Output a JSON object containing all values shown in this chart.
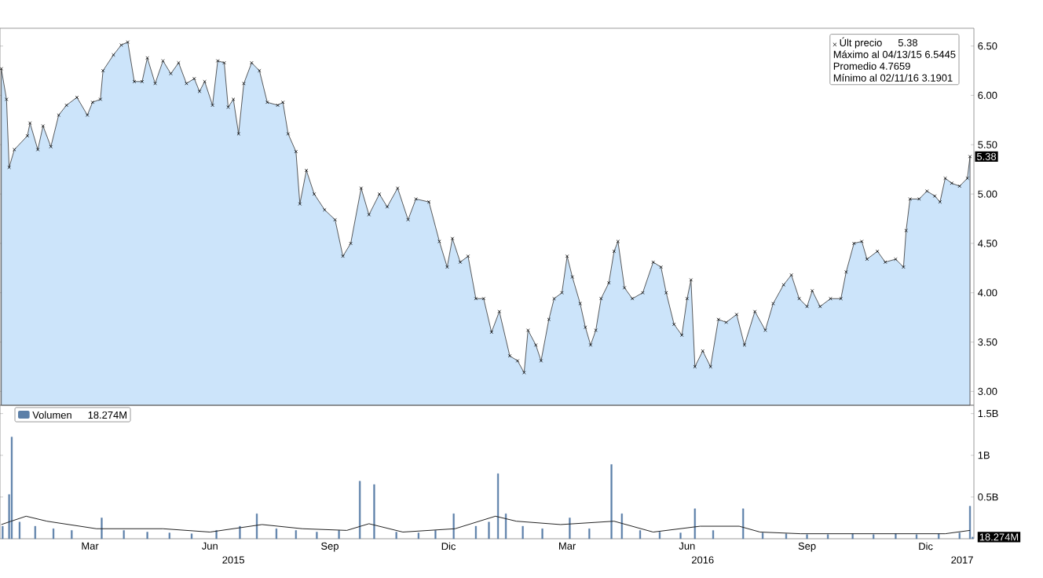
{
  "chart_data": [
    {
      "type": "area",
      "tick_labels": "y",
      "marker": "cross",
      "legend": "top right",
      "xlim": [
        "2015-01-05",
        "2017-01-21"
      ],
      "ylim": [
        2.86,
        6.68
      ],
      "yticks": [
        {
          "value": 3,
          "label": "3.00"
        },
        {
          "value": 3.5,
          "label": "3.50"
        },
        {
          "value": 4,
          "label": "4.00"
        },
        {
          "value": 4.5,
          "label": "4.50"
        },
        {
          "value": 5,
          "label": "5.00"
        },
        {
          "value": 5.5,
          "label": "5.50"
        },
        {
          "value": 6,
          "label": "6.00"
        },
        {
          "value": 6.5,
          "label": "6.50"
        }
      ],
      "series": [
        {
          "name": "Últ precio",
          "color": "#cce4fa",
          "x": [
            "2015-01-06",
            "2015-01-10",
            "2015-01-12",
            "2015-01-16",
            "2015-01-26",
            "2015-01-28",
            "2015-02-03",
            "2015-02-07",
            "2015-02-13",
            "2015-02-19",
            "2015-02-25",
            "2015-03-05",
            "2015-03-13",
            "2015-03-17",
            "2015-03-23",
            "2015-03-25",
            "2015-04-02",
            "2015-04-08",
            "2015-04-13",
            "2015-04-18",
            "2015-04-24",
            "2015-04-28",
            "2015-05-04",
            "2015-05-10",
            "2015-05-16",
            "2015-05-22",
            "2015-05-28",
            "2015-06-03",
            "2015-06-07",
            "2015-06-11",
            "2015-06-17",
            "2015-06-21",
            "2015-06-26",
            "2015-06-29",
            "2015-07-03",
            "2015-07-07",
            "2015-07-11",
            "2015-07-17",
            "2015-07-23",
            "2015-07-29",
            "2015-08-06",
            "2015-08-10",
            "2015-08-14",
            "2015-08-20",
            "2015-08-23",
            "2015-08-28",
            "2015-09-03",
            "2015-09-11",
            "2015-09-19",
            "2015-09-25",
            "2015-10-01",
            "2015-10-09",
            "2015-10-15",
            "2015-10-23",
            "2015-10-29",
            "2015-11-06",
            "2015-11-14",
            "2015-11-20",
            "2015-11-30",
            "2015-12-08",
            "2015-12-14",
            "2015-12-18",
            "2015-12-24",
            "2015-12-30",
            "2016-01-05",
            "2016-01-11",
            "2016-01-17",
            "2016-01-23",
            "2016-01-31",
            "2016-02-06",
            "2016-02-11",
            "2016-02-14",
            "2016-02-20",
            "2016-02-24",
            "2016-03-01",
            "2016-03-05",
            "2016-03-11",
            "2016-03-15",
            "2016-03-19",
            "2016-03-25",
            "2016-03-29",
            "2016-04-02",
            "2016-04-06",
            "2016-04-10",
            "2016-04-16",
            "2016-04-20",
            "2016-04-23",
            "2016-04-28",
            "2016-05-04",
            "2016-05-12",
            "2016-05-20",
            "2016-05-26",
            "2016-05-30",
            "2016-06-05",
            "2016-06-11",
            "2016-06-15",
            "2016-06-18",
            "2016-06-21",
            "2016-06-27",
            "2016-07-03",
            "2016-07-09",
            "2016-07-15",
            "2016-07-23",
            "2016-07-29",
            "2016-08-06",
            "2016-08-14",
            "2016-08-20",
            "2016-08-28",
            "2016-09-03",
            "2016-09-09",
            "2016-09-15",
            "2016-09-19",
            "2016-09-25",
            "2016-10-03",
            "2016-10-11",
            "2016-10-15",
            "2016-10-21",
            "2016-10-27",
            "2016-10-31",
            "2016-11-08",
            "2016-11-14",
            "2016-11-22",
            "2016-11-28",
            "2016-11-30",
            "2016-12-03",
            "2016-12-10",
            "2016-12-16",
            "2016-12-22",
            "2016-12-26",
            "2016-12-30",
            "2017-01-04",
            "2017-01-10",
            "2017-01-16",
            "2017-01-18"
          ],
          "values": [
            6.27,
            5.96,
            5.27,
            5.45,
            5.59,
            5.72,
            5.45,
            5.69,
            5.48,
            5.8,
            5.9,
            5.98,
            5.8,
            5.93,
            5.96,
            6.25,
            6.41,
            6.51,
            6.54,
            6.14,
            6.14,
            6.38,
            6.12,
            6.35,
            6.22,
            6.33,
            6.12,
            6.17,
            6.04,
            6.14,
            5.9,
            6.35,
            6.33,
            5.88,
            5.96,
            5.61,
            6.12,
            6.33,
            6.25,
            5.93,
            5.9,
            5.93,
            5.61,
            5.43,
            4.9,
            5.24,
            5.0,
            4.84,
            4.74,
            4.37,
            4.5,
            5.06,
            4.79,
            5.0,
            4.87,
            5.06,
            4.74,
            4.95,
            4.92,
            4.52,
            4.26,
            4.55,
            4.31,
            4.37,
            3.94,
            3.94,
            3.6,
            3.81,
            3.36,
            3.31,
            3.19,
            3.62,
            3.47,
            3.31,
            3.73,
            3.94,
            4.0,
            4.37,
            4.16,
            3.89,
            3.65,
            3.47,
            3.62,
            3.94,
            4.1,
            4.42,
            4.52,
            4.05,
            3.94,
            4.0,
            4.31,
            4.26,
            4.0,
            3.68,
            3.57,
            3.94,
            4.13,
            3.25,
            3.41,
            3.25,
            3.73,
            3.7,
            3.78,
            3.47,
            3.81,
            3.62,
            3.89,
            4.08,
            4.18,
            3.94,
            3.86,
            4.02,
            3.86,
            3.94,
            3.94,
            4.21,
            4.5,
            4.52,
            4.34,
            4.42,
            4.31,
            4.34,
            4.26,
            4.63,
            4.95,
            4.95,
            5.03,
            4.98,
            4.92,
            5.16,
            5.11,
            5.08,
            5.16,
            5.38
          ]
        }
      ],
      "annotations": [
        {
          "text": "5.38",
          "x": "2017-01-18",
          "y": 5.38
        },
        "Máximo al 04/13/15 6.5445",
        "Promedio 4.7659",
        "Mínimo al 02/11/16 3.1901"
      ]
    },
    {
      "type": "bar",
      "legend": "top left",
      "xlim": [
        "2015-01-05",
        "2017-01-21"
      ],
      "ylim": [
        0,
        1.6
      ],
      "yticks": [
        {
          "value": 0.5,
          "label": "0.5B"
        },
        {
          "value": 1,
          "label": "1B"
        },
        {
          "value": 1.5,
          "label": "1.5B"
        }
      ],
      "xticks": [
        {
          "value": "2015-03-15",
          "label": "Mar"
        },
        {
          "value": "2015-06-15",
          "label": "Jun"
        },
        {
          "value": "2015-09-15",
          "label": "Sep"
        },
        {
          "value": "2015-12-15",
          "label": "Dic"
        },
        {
          "value": "2016-03-15",
          "label": "Mar"
        },
        {
          "value": "2016-06-15",
          "label": "Jun"
        },
        {
          "value": "2016-09-15",
          "label": "Sep"
        },
        {
          "value": "2016-12-15",
          "label": "Dic"
        }
      ],
      "x2lim": [
        "2015-01-05",
        "2017-01-21"
      ],
      "x2ticks": [
        {
          "value": "2015-07-03",
          "label": "2015"
        },
        {
          "value": "2016-06-27",
          "label": "2016"
        },
        {
          "value": "2017-01-12",
          "label": "2017"
        }
      ],
      "series": [
        {
          "name": "Volumen",
          "color": "#5b7fa8",
          "x": [
            "2015-01-07",
            "2015-01-12",
            "2015-01-14",
            "2015-01-20",
            "2015-02-01",
            "2015-02-15",
            "2015-03-01",
            "2015-03-24",
            "2015-04-10",
            "2015-04-28",
            "2015-05-15",
            "2015-06-01",
            "2015-06-20",
            "2015-07-08",
            "2015-07-21",
            "2015-08-05",
            "2015-08-20",
            "2015-09-05",
            "2015-09-22",
            "2015-10-08",
            "2015-10-19",
            "2015-11-05",
            "2015-11-22",
            "2015-12-05",
            "2015-12-19",
            "2016-01-05",
            "2016-01-15",
            "2016-01-22",
            "2016-01-28",
            "2016-02-10",
            "2016-02-25",
            "2016-03-17",
            "2016-04-01",
            "2016-04-18",
            "2016-04-26",
            "2016-05-10",
            "2016-05-25",
            "2016-06-10",
            "2016-06-21",
            "2016-07-05",
            "2016-07-28",
            "2016-08-12",
            "2016-08-30",
            "2016-09-15",
            "2016-10-01",
            "2016-10-20",
            "2016-11-05",
            "2016-11-22",
            "2016-12-08",
            "2016-12-25",
            "2017-01-10",
            "2017-01-18",
            "2017-01-20"
          ],
          "values": [
            0.15,
            0.53,
            1.22,
            0.2,
            0.15,
            0.12,
            0.1,
            0.25,
            0.1,
            0.08,
            0.07,
            0.06,
            0.1,
            0.15,
            0.3,
            0.12,
            0.1,
            0.08,
            0.1,
            0.69,
            0.65,
            0.08,
            0.07,
            0.1,
            0.3,
            0.15,
            0.2,
            0.78,
            0.3,
            0.15,
            0.12,
            0.25,
            0.12,
            0.89,
            0.3,
            0.1,
            0.08,
            0.07,
            0.36,
            0.1,
            0.36,
            0.07,
            0.06,
            0.05,
            0.05,
            0.06,
            0.05,
            0.06,
            0.05,
            0.06,
            0.07,
            0.39,
            0.02
          ]
        },
        {
          "type": "line",
          "color": "#222222",
          "x": [
            "2015-01-06",
            "2015-01-25",
            "2015-02-10",
            "2015-03-20",
            "2015-05-10",
            "2015-06-15",
            "2015-07-25",
            "2015-08-25",
            "2015-09-28",
            "2015-10-15",
            "2015-11-10",
            "2015-12-20",
            "2016-01-20",
            "2016-02-05",
            "2016-03-10",
            "2016-04-20",
            "2016-05-20",
            "2016-06-25",
            "2016-07-25",
            "2016-08-10",
            "2016-09-10",
            "2016-12-30",
            "2017-01-18"
          ],
          "values": [
            0.17,
            0.27,
            0.21,
            0.12,
            0.12,
            0.08,
            0.17,
            0.12,
            0.1,
            0.18,
            0.08,
            0.12,
            0.27,
            0.21,
            0.17,
            0.21,
            0.08,
            0.15,
            0.15,
            0.08,
            0.06,
            0.06,
            0.1
          ]
        }
      ],
      "annotations": [
        {
          "text": "18.274M",
          "x": "2017-01-20",
          "y": 0.02
        }
      ]
    }
  ]
}
